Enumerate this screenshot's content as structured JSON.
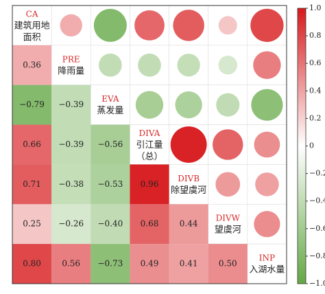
{
  "chart_data": {
    "type": "corrplot",
    "variables": [
      {
        "code": "CA",
        "name": [
          "建筑用地",
          "面积"
        ]
      },
      {
        "code": "PRE",
        "name": [
          "降雨量"
        ]
      },
      {
        "code": "EVA",
        "name": [
          "蒸发量"
        ]
      },
      {
        "code": "DIVA",
        "name": [
          "引江量",
          "（总）"
        ]
      },
      {
        "code": "DIVB",
        "name": [
          "除望虞河"
        ]
      },
      {
        "code": "DIVW",
        "name": [
          "望虞河"
        ]
      },
      {
        "code": "INP",
        "name": [
          "入湖水量"
        ]
      }
    ],
    "lower": [
      [
        0.36
      ],
      [
        -0.79,
        -0.39
      ],
      [
        0.66,
        -0.39,
        -0.56
      ],
      [
        0.71,
        -0.38,
        -0.53,
        0.96
      ],
      [
        0.25,
        -0.26,
        -0.4,
        0.68,
        0.44
      ],
      [
        0.8,
        0.56,
        -0.73,
        0.49,
        0.41,
        0.5
      ]
    ],
    "value_labels": [
      [
        "0.36"
      ],
      [
        "−0.79",
        "−0.39"
      ],
      [
        "0.66",
        "−0.39",
        "−0.56"
      ],
      [
        "0.71",
        "−0.38",
        "−0.53",
        "0.96"
      ],
      [
        "0.25",
        "−0.26",
        "−0.40",
        "0.68",
        "0.44"
      ],
      [
        "0.80",
        "0.56",
        "−0.73",
        "0.49",
        "0.41",
        "0.50"
      ]
    ],
    "colormap": [
      "#63a844",
      "#ffffff",
      "#d7191c"
    ],
    "clim": [
      -1,
      1
    ],
    "cticks": [
      {
        "value": 1.0,
        "label": "1.0"
      },
      0.8,
      0.6,
      0.4,
      0.2,
      0,
      {
        "value": -0.2,
        "label": "−0.2"
      },
      {
        "value": -0.4,
        "label": "−0.4"
      },
      {
        "value": -0.6,
        "label": "−0.6"
      },
      {
        "value": -0.8,
        "label": "−0.8"
      },
      {
        "value": -1.0,
        "label": "−1.0"
      }
    ]
  }
}
